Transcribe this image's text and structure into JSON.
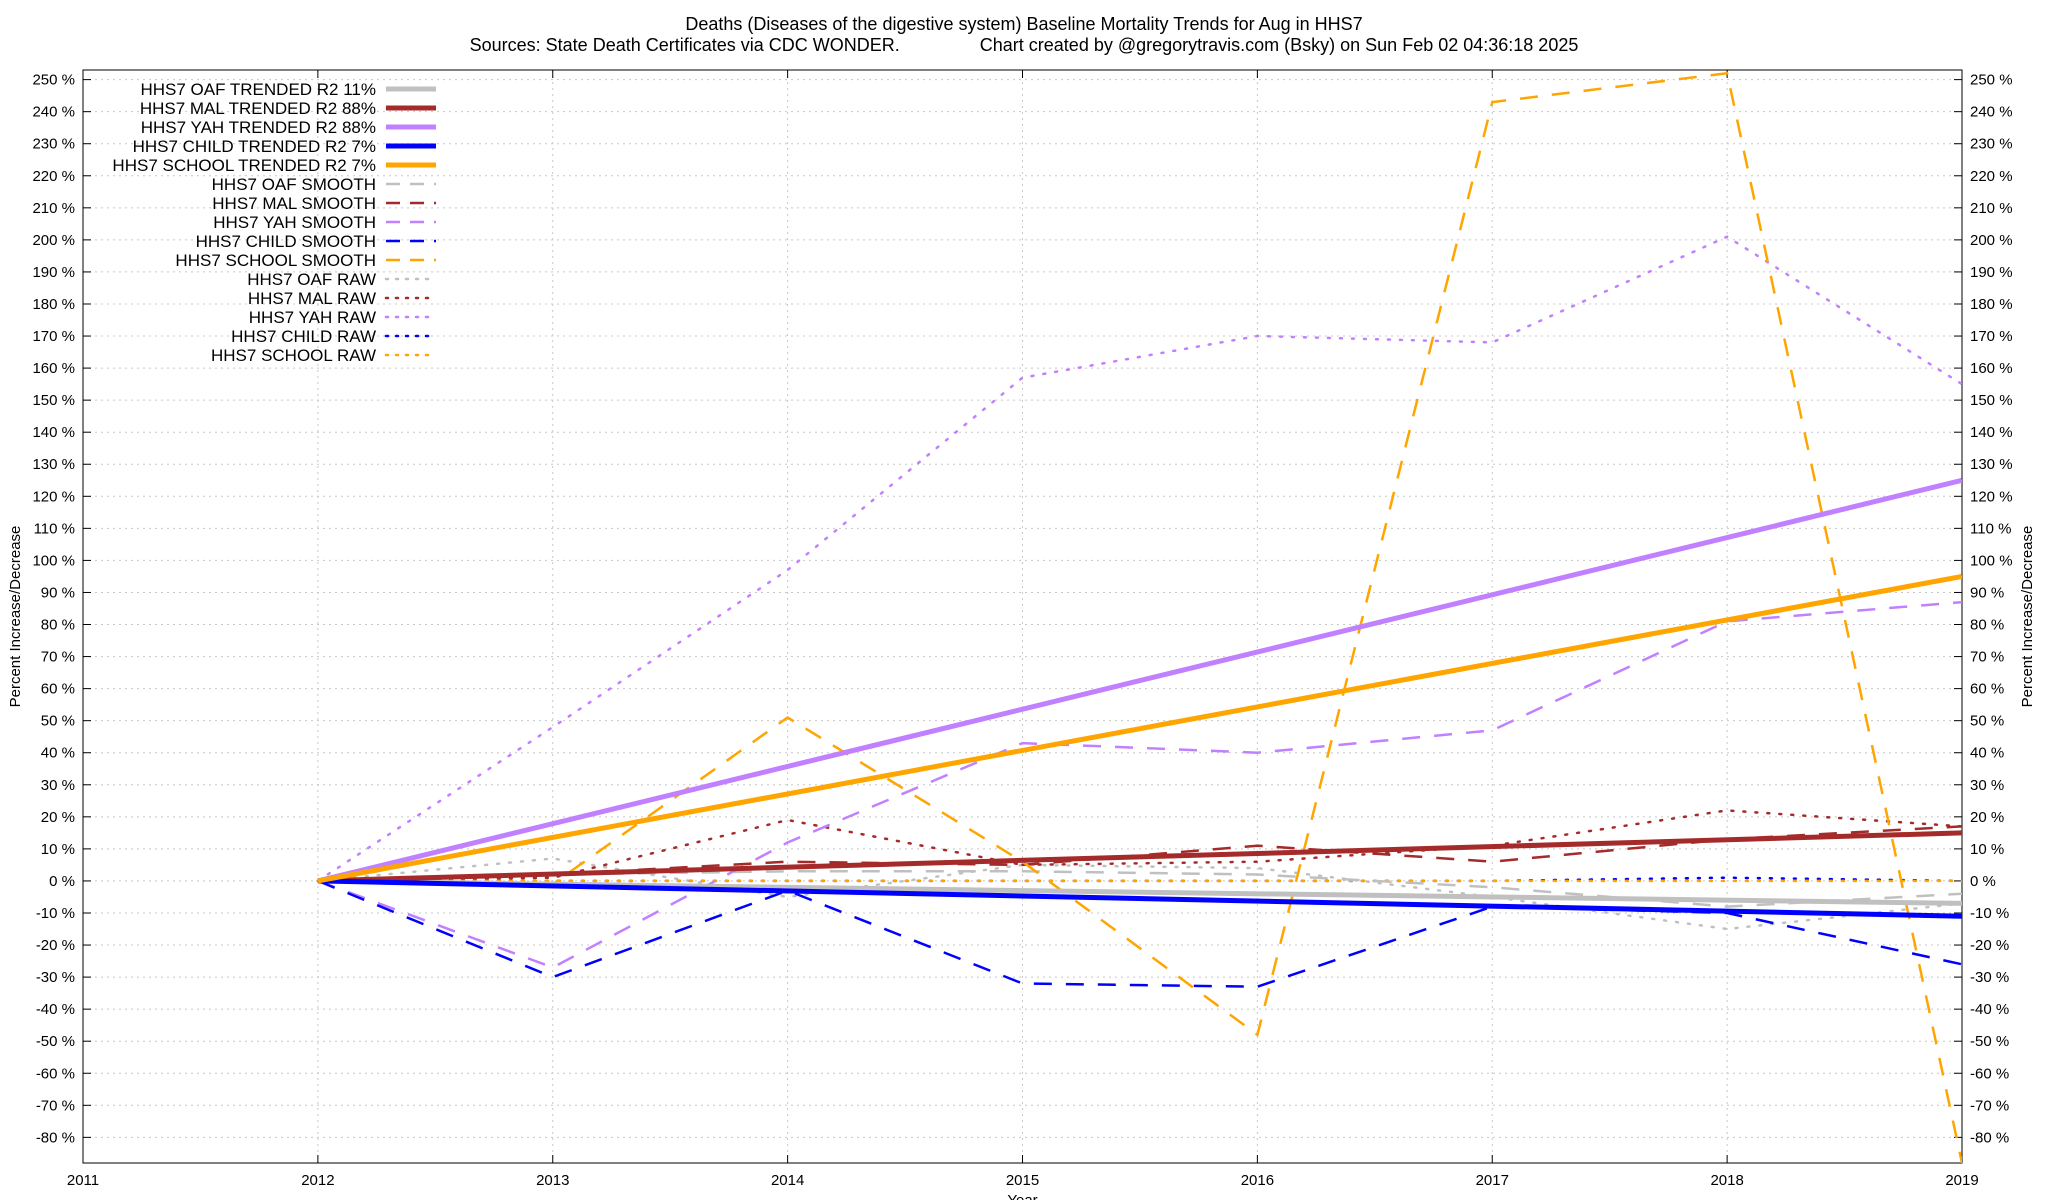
{
  "title": {
    "line1": "Deaths (Diseases of the digestive system)  Baseline Mortality Trends for Aug in HHS7",
    "line2": "Sources: State Death Certificates via CDC WONDER.                Chart created by @gregorytravis.com (Bsky) on Sun Feb 02 04:36:18 2025"
  },
  "chart_data": {
    "type": "line",
    "xlabel": "Year",
    "ylabel": "Percent Increase/Decrease",
    "y2label": "Percent Increase/Decrease",
    "xlim": [
      2011,
      2019
    ],
    "ylim": [
      -88,
      253
    ],
    "x_ticks": [
      "2011",
      "2012",
      "2013",
      "2014",
      "2015",
      "2016",
      "2017",
      "2018",
      "2019"
    ],
    "y_tick_values": [
      250,
      240,
      230,
      220,
      210,
      200,
      190,
      180,
      170,
      160,
      150,
      140,
      130,
      120,
      110,
      100,
      90,
      80,
      70,
      60,
      50,
      40,
      30,
      20,
      10,
      0,
      -10,
      -20,
      -30,
      -40,
      -50,
      -60,
      -70,
      -80
    ],
    "y_tick_suffix": " %",
    "grid": true,
    "legend_position": "top-left",
    "series": [
      {
        "name": "HHS7 OAF TRENDED R2",
        "r2": "11%",
        "color": "#c0c0c0",
        "style": "solid",
        "x": [
          2012,
          2019
        ],
        "values": [
          0,
          -7
        ]
      },
      {
        "name": "HHS7 MAL TRENDED R2",
        "r2": "88%",
        "color": "#a52a2a",
        "style": "solid",
        "x": [
          2012,
          2019
        ],
        "values": [
          0,
          15
        ]
      },
      {
        "name": "HHS7 YAH TRENDED R2",
        "r2": "88%",
        "color": "#c080ff",
        "style": "solid",
        "x": [
          2012,
          2019
        ],
        "values": [
          0,
          125
        ]
      },
      {
        "name": "HHS7 CHILD TRENDED R2",
        "r2": "7%",
        "color": "#0000ff",
        "style": "solid",
        "x": [
          2012,
          2019
        ],
        "values": [
          0,
          -11
        ]
      },
      {
        "name": "HHS7 SCHOOL TRENDED R2",
        "r2": "7%",
        "color": "#ffa500",
        "style": "solid",
        "x": [
          2012,
          2019
        ],
        "values": [
          0,
          95
        ]
      },
      {
        "name": "HHS7 OAF SMOOTH",
        "color": "#c0c0c0",
        "style": "dashed",
        "x": [
          2012,
          2013,
          2014,
          2015,
          2016,
          2017,
          2018,
          2019
        ],
        "values": [
          0,
          2,
          3,
          3,
          2,
          -2,
          -8,
          -4
        ]
      },
      {
        "name": "HHS7 MAL SMOOTH",
        "color": "#a52a2a",
        "style": "dashed",
        "x": [
          2012,
          2013,
          2014,
          2015,
          2016,
          2017,
          2018,
          2019
        ],
        "values": [
          0,
          2,
          6,
          5,
          11,
          6,
          13,
          17
        ]
      },
      {
        "name": "HHS7 YAH SMOOTH",
        "color": "#c080ff",
        "style": "dashed",
        "x": [
          2012,
          2013,
          2014,
          2015,
          2016,
          2017,
          2018,
          2019
        ],
        "values": [
          0,
          -27,
          12,
          43,
          40,
          47,
          81,
          87
        ]
      },
      {
        "name": "HHS7 CHILD SMOOTH",
        "color": "#0000ff",
        "style": "dashed",
        "x": [
          2012,
          2013,
          2014,
          2015,
          2016,
          2017,
          2018,
          2019
        ],
        "values": [
          0,
          -30,
          -3,
          -32,
          -33,
          -8,
          -10,
          -26
        ]
      },
      {
        "name": "HHS7 SCHOOL SMOOTH",
        "color": "#ffa500",
        "style": "dashed",
        "x": [
          2012,
          2013,
          2014,
          2015,
          2016,
          2017,
          2018,
          2019
        ],
        "values": [
          0,
          -1,
          51,
          6,
          -48,
          243,
          252,
          -88
        ]
      },
      {
        "name": "HHS7 OAF RAW",
        "color": "#c0c0c0",
        "style": "dotted",
        "x": [
          2012,
          2013,
          2014,
          2015,
          2016,
          2017,
          2018,
          2019
        ],
        "values": [
          0,
          7,
          -5,
          5,
          4,
          -5,
          -15,
          -7
        ]
      },
      {
        "name": "HHS7 MAL RAW",
        "color": "#a52a2a",
        "style": "dotted",
        "x": [
          2012,
          2013,
          2014,
          2015,
          2016,
          2017,
          2018,
          2019
        ],
        "values": [
          0,
          1,
          19,
          5,
          6,
          11,
          22,
          17
        ]
      },
      {
        "name": "HHS7 YAH RAW",
        "color": "#c080ff",
        "style": "dotted",
        "x": [
          2012,
          2013,
          2014,
          2015,
          2016,
          2017,
          2018,
          2019
        ],
        "values": [
          0,
          48,
          97,
          157,
          170,
          168,
          201,
          155
        ]
      },
      {
        "name": "HHS7 CHILD RAW",
        "color": "#0000ff",
        "style": "dotted",
        "x": [
          2012,
          2013,
          2014,
          2015,
          2016,
          2017,
          2018,
          2019
        ],
        "values": [
          0,
          0,
          0,
          0,
          0,
          0,
          1,
          0
        ]
      },
      {
        "name": "HHS7 SCHOOL RAW",
        "color": "#ffa500",
        "style": "dotted",
        "x": [
          2012,
          2013,
          2014,
          2015,
          2016,
          2017,
          2018,
          2019
        ],
        "values": [
          0,
          0,
          0,
          0,
          0,
          0,
          0,
          0
        ]
      }
    ]
  }
}
